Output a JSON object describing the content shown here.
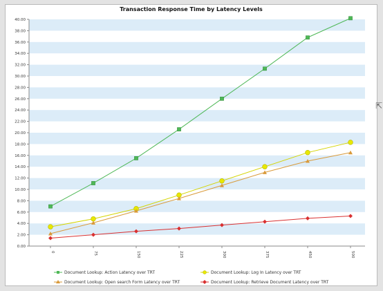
{
  "chart_data": {
    "type": "line",
    "title": "Transaction Response Time by Latency Levels",
    "xlabel": "",
    "ylabel": "",
    "categories": [
      "0",
      "75",
      "150",
      "225",
      "300",
      "375",
      "450",
      "500"
    ],
    "ylim": [
      0,
      40
    ],
    "yticks": [
      "0.00",
      "2.00",
      "4.00",
      "6.00",
      "8.00",
      "10.00",
      "12.00",
      "14.00",
      "16.00",
      "18.00",
      "20.00",
      "22.00",
      "24.00",
      "26.00",
      "28.00",
      "30.00",
      "32.00",
      "34.00",
      "36.00",
      "38.00",
      "40.00"
    ],
    "grid": "alternating-bands",
    "legend_position": "bottom",
    "series": [
      {
        "name": "Document Lookup: Action Latency over TRT",
        "color": "#4fb857",
        "marker": "square",
        "values": [
          7.0,
          11.1,
          15.5,
          20.6,
          26.0,
          31.3,
          36.8,
          40.2
        ]
      },
      {
        "name": "Document Lookup: Log In Latency over TRT",
        "color": "#d4d400",
        "marker": "circle",
        "values": [
          3.4,
          4.8,
          6.6,
          9.0,
          11.5,
          14.0,
          16.5,
          18.3
        ]
      },
      {
        "name": "Document Lookup: Open search Form Latency over TRT",
        "color": "#d99a3a",
        "marker": "triangle",
        "values": [
          2.2,
          4.1,
          6.2,
          8.4,
          10.7,
          13.0,
          15.0,
          16.5
        ]
      },
      {
        "name": "Document Lookup: Retrieve Document Latency over TRT",
        "color": "#d93030",
        "marker": "diamond",
        "values": [
          1.4,
          2.0,
          2.6,
          3.1,
          3.7,
          4.3,
          4.9,
          5.3
        ]
      }
    ]
  }
}
